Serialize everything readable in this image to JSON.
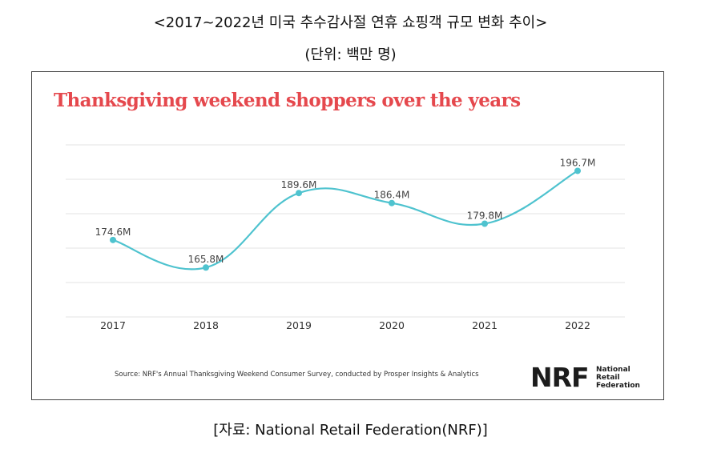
{
  "page": {
    "title": "<2017~2022년 미국 추수감사절 연휴 쇼핑객 규모 변화 추이>",
    "unit": "(단위: 백만 명)",
    "caption": "[자료: National Retail Federation(NRF)]"
  },
  "chart_data": {
    "type": "line",
    "title": "Thanksgiving weekend shoppers over the years",
    "categories": [
      "2017",
      "2018",
      "2019",
      "2020",
      "2021",
      "2022"
    ],
    "values": [
      174.6,
      165.8,
      189.6,
      186.4,
      179.8,
      196.7
    ],
    "data_labels": [
      "174.6M",
      "165.8M",
      "189.6M",
      "186.4M",
      "179.8M",
      "196.7M"
    ],
    "ylim": [
      150,
      205
    ],
    "grid": true,
    "line_color": "#4fc3cf",
    "title_color": "#e5484d",
    "source": "Source: NRF's Annual Thanksgiving Weekend Consumer Survey, conducted by Prosper Insights & Analytics"
  },
  "logo": {
    "mark": "NRF",
    "line1": "National",
    "line2": "Retail",
    "line3": "Federation"
  }
}
